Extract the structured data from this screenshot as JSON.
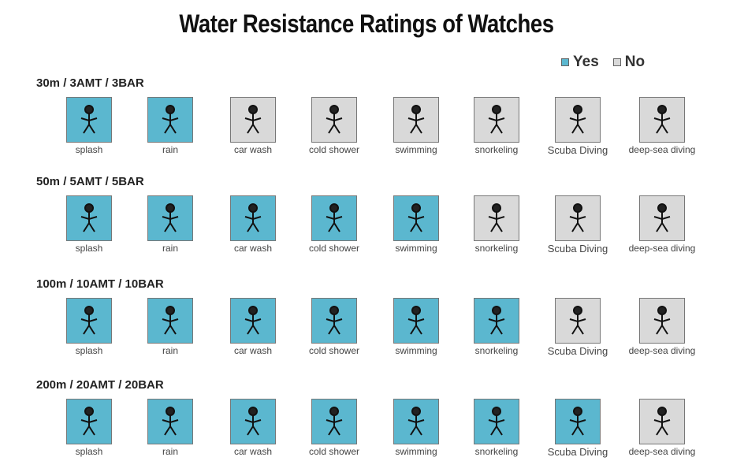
{
  "title": "Water Resistance Ratings of Watches",
  "legend": {
    "yes": "Yes",
    "no": "No"
  },
  "colors": {
    "yes": "#5bb7cf",
    "no": "#d9d9d9"
  },
  "activities": [
    "splash",
    "rain",
    "car wash",
    "cold shower",
    "swimming",
    "snorkeling",
    "Scuba Diving",
    "deep-sea diving"
  ],
  "ratings": [
    {
      "label": "30m / 3AMT / 3BAR",
      "suitable": [
        true,
        true,
        false,
        false,
        false,
        false,
        false,
        false
      ]
    },
    {
      "label": "50m / 5AMT / 5BAR",
      "suitable": [
        true,
        true,
        true,
        true,
        true,
        false,
        false,
        false
      ]
    },
    {
      "label": "100m / 10AMT / 10BAR",
      "suitable": [
        true,
        true,
        true,
        true,
        true,
        true,
        false,
        false
      ]
    },
    {
      "label": "200m / 20AMT / 20BAR",
      "suitable": [
        true,
        true,
        true,
        true,
        true,
        true,
        true,
        false
      ]
    }
  ]
}
